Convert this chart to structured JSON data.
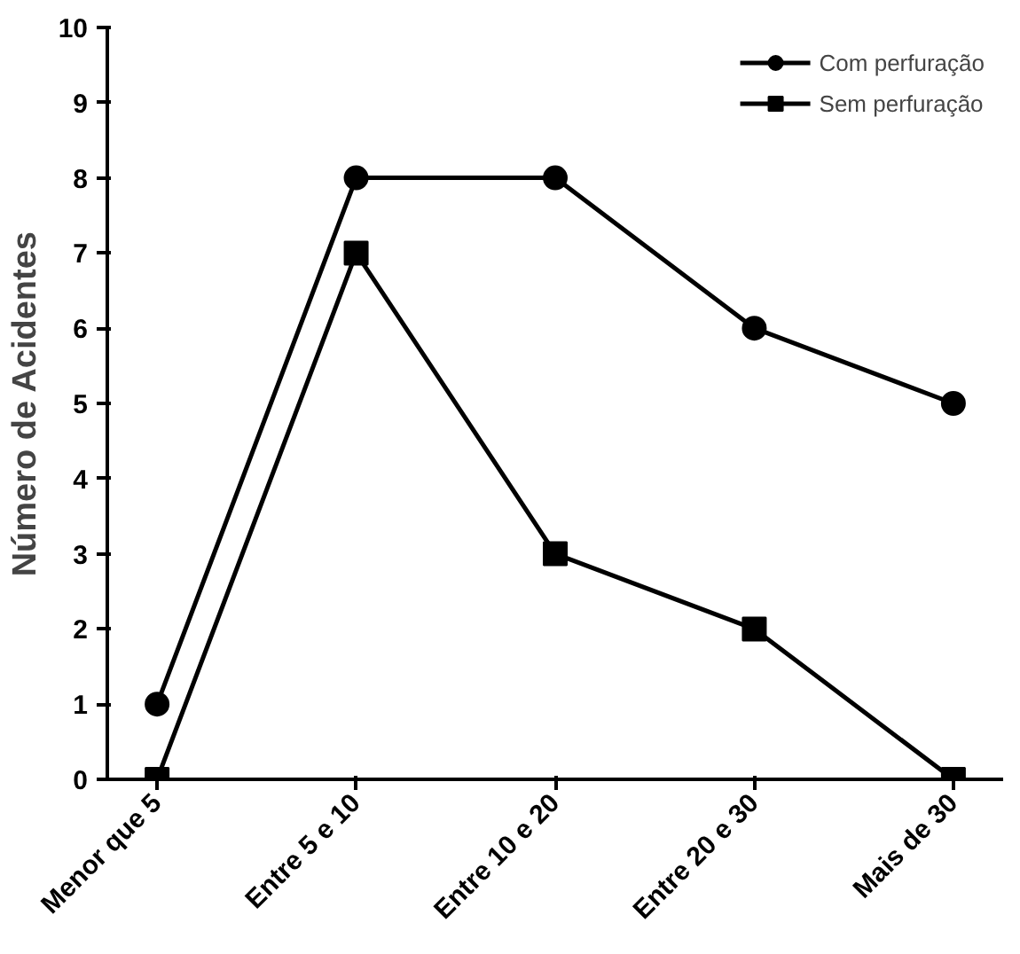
{
  "chart_data": {
    "type": "line",
    "ylabel": "Número de Acidentes",
    "categories": [
      "Menor que 5",
      "Entre 5 e 10",
      "Entre 10 e 20",
      "Entre 20 e 30",
      "Mais de 30"
    ],
    "series": [
      {
        "name": "Com perfuração",
        "color": "#000000",
        "marker": "circle",
        "values": [
          1,
          8,
          8,
          6,
          5
        ]
      },
      {
        "name": "Sem perfuração",
        "color": "#000000",
        "marker": "square",
        "values": [
          0,
          7,
          3,
          2,
          0
        ]
      }
    ],
    "ylim": [
      0,
      10
    ],
    "yticks": [
      0,
      1,
      2,
      3,
      4,
      5,
      6,
      7,
      8,
      9,
      10
    ],
    "grid": false,
    "legend": "top right",
    "line_style": "solid"
  }
}
